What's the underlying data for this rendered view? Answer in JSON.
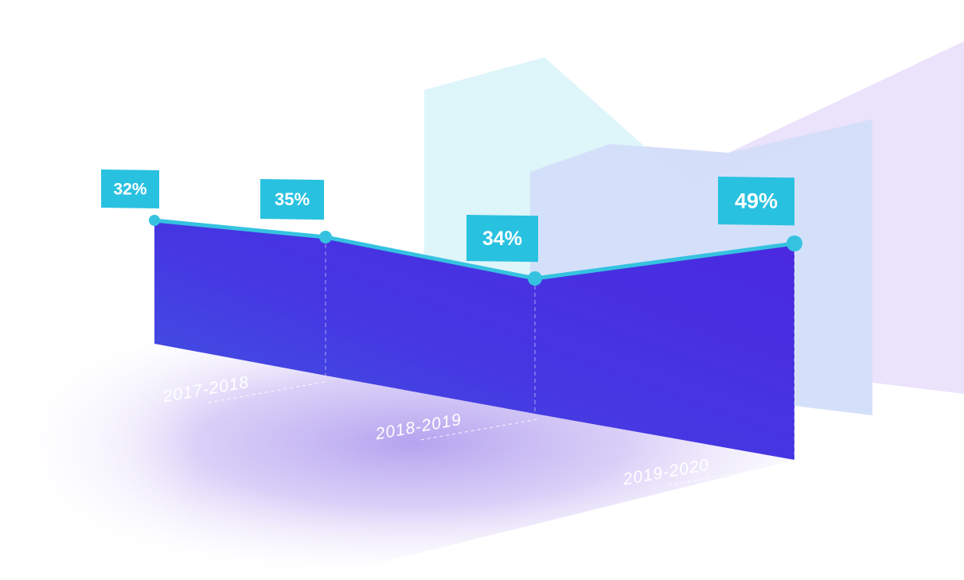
{
  "chart_data": {
    "type": "area",
    "title": "",
    "xlabel": "",
    "ylabel": "",
    "points": [
      {
        "value": 32,
        "label": "32%"
      },
      {
        "value": 35,
        "label": "35%"
      },
      {
        "value": 34,
        "label": "34%"
      },
      {
        "value": 49,
        "label": "49%"
      }
    ],
    "periods": [
      "2017-2018",
      "2018-2019",
      "2019-2020"
    ],
    "colors": {
      "area_top": "#4a2ee0",
      "area_bottom": "#3d5be0",
      "line": "#35c2e0",
      "label_box": "#29c1e0",
      "back_panel_cyan": "#dff5fa",
      "back_panel_violet": "#ebe2fb",
      "back_panel_blue": "#d4dff8",
      "floor": "#b7a6f0"
    }
  }
}
